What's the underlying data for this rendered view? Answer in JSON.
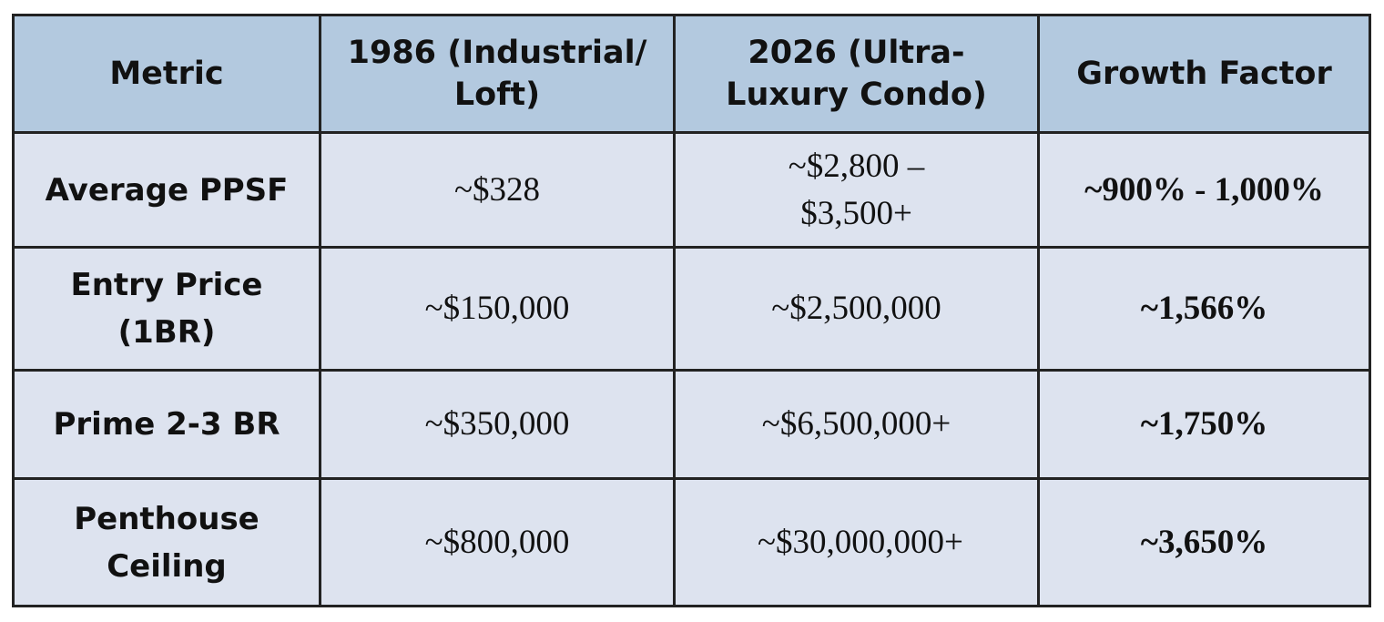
{
  "table": {
    "header": [
      "Metric",
      "1986 (Industrial/ Loft)",
      "2026 (Ultra-Luxury Condo)",
      "Growth Factor"
    ],
    "rows": [
      [
        "Average PPSF",
        "~$328",
        "~$2,800 – $3,500+",
        "~900% - 1,000%"
      ],
      [
        "Entry Price (1BR)",
        "~$150,000",
        "~$2,500,000",
        "~1,566%"
      ],
      [
        "Prime 2-3 BR",
        "~$350,000",
        "~$6,500,000+",
        "~1,750%"
      ],
      [
        "Penthouse Ceiling",
        "~$800,000",
        "~$30,000,000+",
        "~3,650%"
      ]
    ]
  }
}
